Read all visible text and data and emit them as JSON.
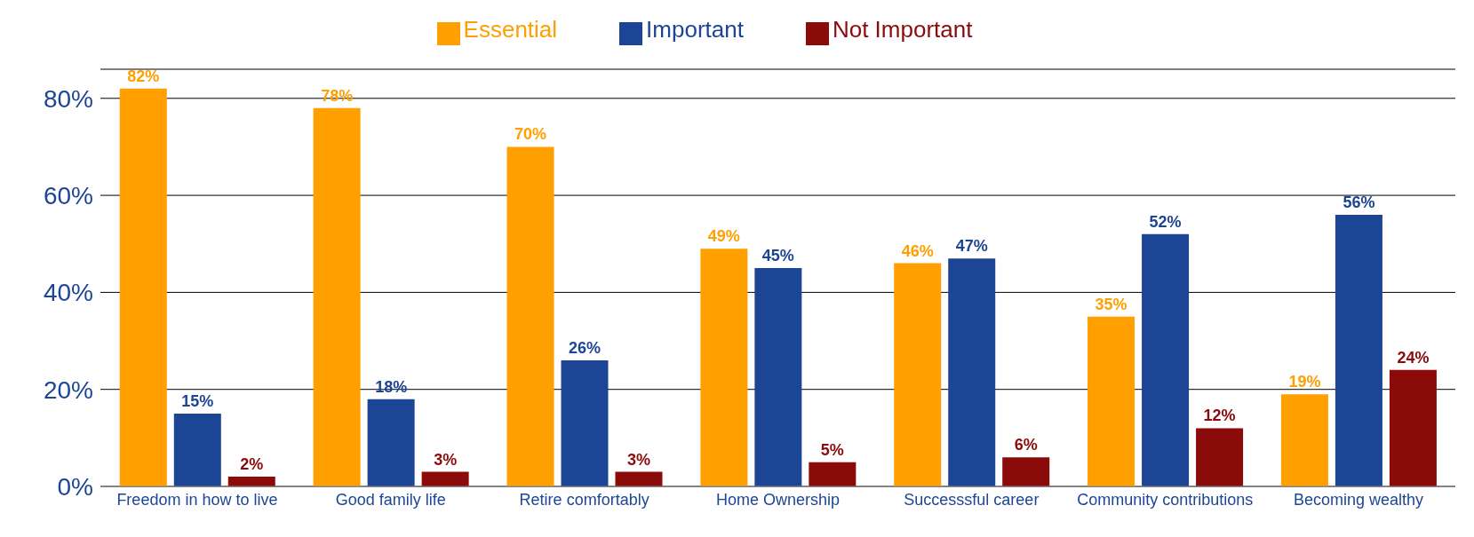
{
  "chart_data": {
    "type": "bar",
    "categories": [
      "Freedom in how to live",
      "Good family life",
      "Retire comfortably",
      "Home Ownership",
      "Successsful career",
      "Community contributions",
      "Becoming wealthy"
    ],
    "series": [
      {
        "name": "Essential",
        "color": "#ff9f00",
        "values": [
          82,
          78,
          70,
          49,
          46,
          35,
          19
        ],
        "value_labels": [
          "82%",
          "78%",
          "70%",
          "49%",
          "46%",
          "35%",
          "19%"
        ]
      },
      {
        "name": "Important",
        "color": "#1c4596",
        "values": [
          15,
          18,
          26,
          45,
          47,
          52,
          56
        ],
        "value_labels": [
          "15%",
          "18%",
          "26%",
          "45%",
          "47%",
          "52%",
          "56%"
        ]
      },
      {
        "name": "Not Important",
        "color": "#8b0a0a",
        "values": [
          2,
          3,
          3,
          5,
          6,
          12,
          24
        ],
        "value_labels": [
          "2%",
          "3%",
          "3%",
          "5%",
          "6%",
          "12%",
          "24%"
        ]
      }
    ],
    "ylim": [
      0,
      86
    ],
    "yticks": [
      {
        "value": 0,
        "label": "0%"
      },
      {
        "value": 20,
        "label": "20%"
      },
      {
        "value": 40,
        "label": "40%"
      },
      {
        "value": 60,
        "label": "60%"
      },
      {
        "value": 80,
        "label": "80%"
      }
    ],
    "grid": "y",
    "legend": "top"
  }
}
